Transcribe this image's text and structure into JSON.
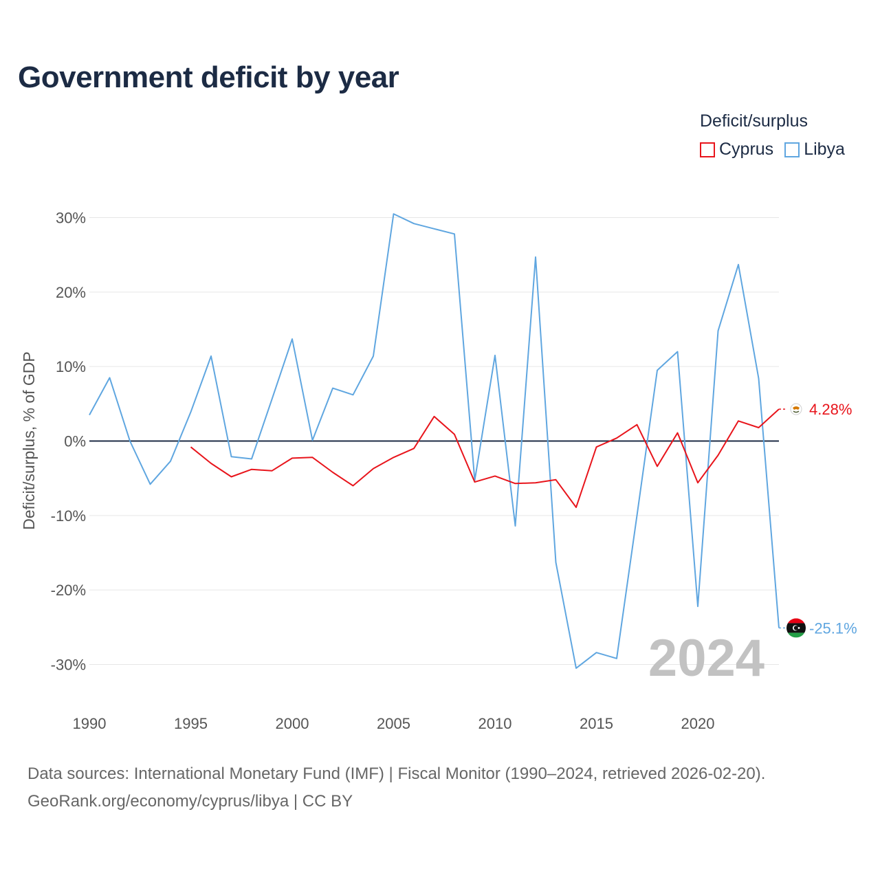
{
  "title": "Government deficit by year",
  "legend": {
    "title": "Deficit/surplus",
    "items": [
      {
        "label": "Cyprus",
        "color": "#e8141b"
      },
      {
        "label": "Libya",
        "color": "#5fa6e0"
      }
    ]
  },
  "footer": {
    "line1": "Data sources: International Monetary Fund (IMF) | Fiscal Monitor (1990–2024, retrieved 2026-02-20).",
    "line2": "GeoRank.org/economy/cyprus/libya | CC BY"
  },
  "chart_data": {
    "type": "line",
    "title": "Government deficit by year",
    "xlabel": "",
    "ylabel": "Deficit/surplus, % of GDP",
    "xlim": [
      1990,
      2024
    ],
    "ylim": [
      -35,
      35
    ],
    "x_ticks": [
      1990,
      1995,
      2000,
      2005,
      2010,
      2015,
      2020
    ],
    "x_tick_labels": [
      "1990",
      "1995",
      "2000",
      "2005",
      "2010",
      "2015",
      "2020"
    ],
    "y_ticks": [
      30,
      20,
      10,
      0,
      -10,
      -20,
      -30
    ],
    "y_tick_labels": [
      "30%",
      "20%",
      "10%",
      "0%",
      "-10%",
      "-20%",
      "-30%"
    ],
    "grid": true,
    "legend_position": "top-right",
    "year_label": "2024",
    "series": [
      {
        "name": "Cyprus",
        "color": "#e8141b",
        "end_label": "4.28%",
        "points": [
          [
            1995,
            -0.8
          ],
          [
            1996,
            -3.0
          ],
          [
            1997,
            -4.8
          ],
          [
            1998,
            -3.8
          ],
          [
            1999,
            -4.0
          ],
          [
            2000,
            -2.3
          ],
          [
            2001,
            -2.2
          ],
          [
            2002,
            -4.2
          ],
          [
            2003,
            -6.0
          ],
          [
            2004,
            -3.7
          ],
          [
            2005,
            -2.2
          ],
          [
            2006,
            -1.0
          ],
          [
            2007,
            3.3
          ],
          [
            2008,
            0.9
          ],
          [
            2009,
            -5.5
          ],
          [
            2010,
            -4.7
          ],
          [
            2011,
            -5.7
          ],
          [
            2012,
            -5.6
          ],
          [
            2013,
            -5.2
          ],
          [
            2014,
            -8.9
          ],
          [
            2015,
            -0.8
          ],
          [
            2016,
            0.4
          ],
          [
            2017,
            2.2
          ],
          [
            2018,
            -3.4
          ],
          [
            2019,
            1.1
          ],
          [
            2020,
            -5.6
          ],
          [
            2021,
            -1.9
          ],
          [
            2022,
            2.7
          ],
          [
            2023,
            1.8
          ],
          [
            2024,
            4.28
          ]
        ]
      },
      {
        "name": "Libya",
        "color": "#5fa6e0",
        "end_label": "-25.1%",
        "points": [
          [
            1990,
            3.5
          ],
          [
            1991,
            8.5
          ],
          [
            1992,
            0.0
          ],
          [
            1993,
            -5.8
          ],
          [
            1994,
            -2.7
          ],
          [
            1995,
            3.9
          ],
          [
            1996,
            11.4
          ],
          [
            1997,
            -2.1
          ],
          [
            1998,
            -2.4
          ],
          [
            1999,
            5.6
          ],
          [
            2000,
            13.7
          ],
          [
            2001,
            0.1
          ],
          [
            2002,
            7.1
          ],
          [
            2003,
            6.2
          ],
          [
            2004,
            11.4
          ],
          [
            2005,
            30.5
          ],
          [
            2006,
            29.2
          ],
          [
            2007,
            28.5
          ],
          [
            2008,
            27.8
          ],
          [
            2009,
            -5.3
          ],
          [
            2010,
            11.5
          ],
          [
            2011,
            -11.4
          ],
          [
            2012,
            24.7
          ],
          [
            2013,
            -16.3
          ],
          [
            2014,
            -30.5
          ],
          [
            2015,
            -28.4
          ],
          [
            2016,
            -29.2
          ],
          [
            2017,
            -10.0
          ],
          [
            2018,
            9.5
          ],
          [
            2019,
            12.0
          ],
          [
            2020,
            -22.2
          ],
          [
            2021,
            14.8
          ],
          [
            2022,
            23.7
          ],
          [
            2023,
            8.4
          ],
          [
            2024,
            -25.1
          ]
        ]
      }
    ]
  }
}
